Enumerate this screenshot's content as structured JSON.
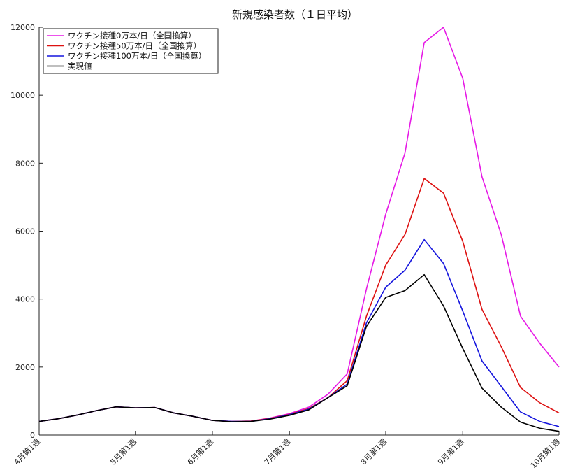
{
  "chart_data": {
    "type": "line",
    "title": "新規感染者数（１日平均）",
    "xlabel": "",
    "ylabel": "",
    "ylim": [
      0,
      12000
    ],
    "yticks": [
      0,
      2000,
      4000,
      6000,
      8000,
      10000,
      12000
    ],
    "xticks": [
      {
        "label": "4月第1週",
        "week": 0
      },
      {
        "label": "5月第1週",
        "week": 5
      },
      {
        "label": "6月第1週",
        "week": 9
      },
      {
        "label": "7月第1週",
        "week": 13
      },
      {
        "label": "8月第1週",
        "week": 18
      },
      {
        "label": "9月第1週",
        "week": 22
      },
      {
        "label": "10月第1週",
        "week": 27
      }
    ],
    "grid": false,
    "legend_position": "top-left",
    "colors": {
      "vaccine_0": "#e619e6",
      "vaccine_50": "#dd1111",
      "vaccine_100": "#1515dd",
      "actual": "#000000"
    },
    "x": [
      0,
      1,
      2,
      3,
      4,
      5,
      6,
      7,
      8,
      9,
      10,
      11,
      12,
      13,
      14,
      15,
      16,
      17,
      18,
      19,
      20,
      21,
      22,
      23,
      24,
      25,
      26,
      27
    ],
    "series": [
      {
        "name": "ワクチン接種0万本/日（全国換算）",
        "color": "#e619e6",
        "values": [
          400,
          480,
          590,
          720,
          830,
          800,
          810,
          650,
          550,
          430,
          400,
          410,
          500,
          630,
          820,
          1200,
          1800,
          4300,
          6500,
          8300,
          11550,
          12000,
          10500,
          7600,
          5900,
          3500,
          2700,
          2000
        ]
      },
      {
        "name": "ワクチン接種50万本/日（全国換算）",
        "color": "#dd1111",
        "values": [
          400,
          480,
          590,
          720,
          830,
          800,
          810,
          650,
          550,
          430,
          400,
          410,
          490,
          610,
          780,
          1100,
          1600,
          3500,
          5000,
          5900,
          7550,
          7120,
          5700,
          3700,
          2600,
          1400,
          950,
          650
        ]
      },
      {
        "name": "ワクチン接種100万本/日（全国換算）",
        "color": "#1515dd",
        "values": [
          400,
          480,
          590,
          720,
          830,
          800,
          810,
          650,
          550,
          430,
          400,
          400,
          480,
          600,
          760,
          1100,
          1500,
          3300,
          4350,
          4850,
          5750,
          5050,
          3650,
          2180,
          1430,
          680,
          400,
          250
        ]
      },
      {
        "name": "実現値",
        "color": "#000000",
        "values": [
          400,
          480,
          590,
          720,
          830,
          800,
          810,
          650,
          550,
          430,
          390,
          400,
          470,
          580,
          740,
          1100,
          1450,
          3200,
          4050,
          4250,
          4720,
          3800,
          2550,
          1380,
          820,
          380,
          200,
          110
        ]
      }
    ]
  }
}
